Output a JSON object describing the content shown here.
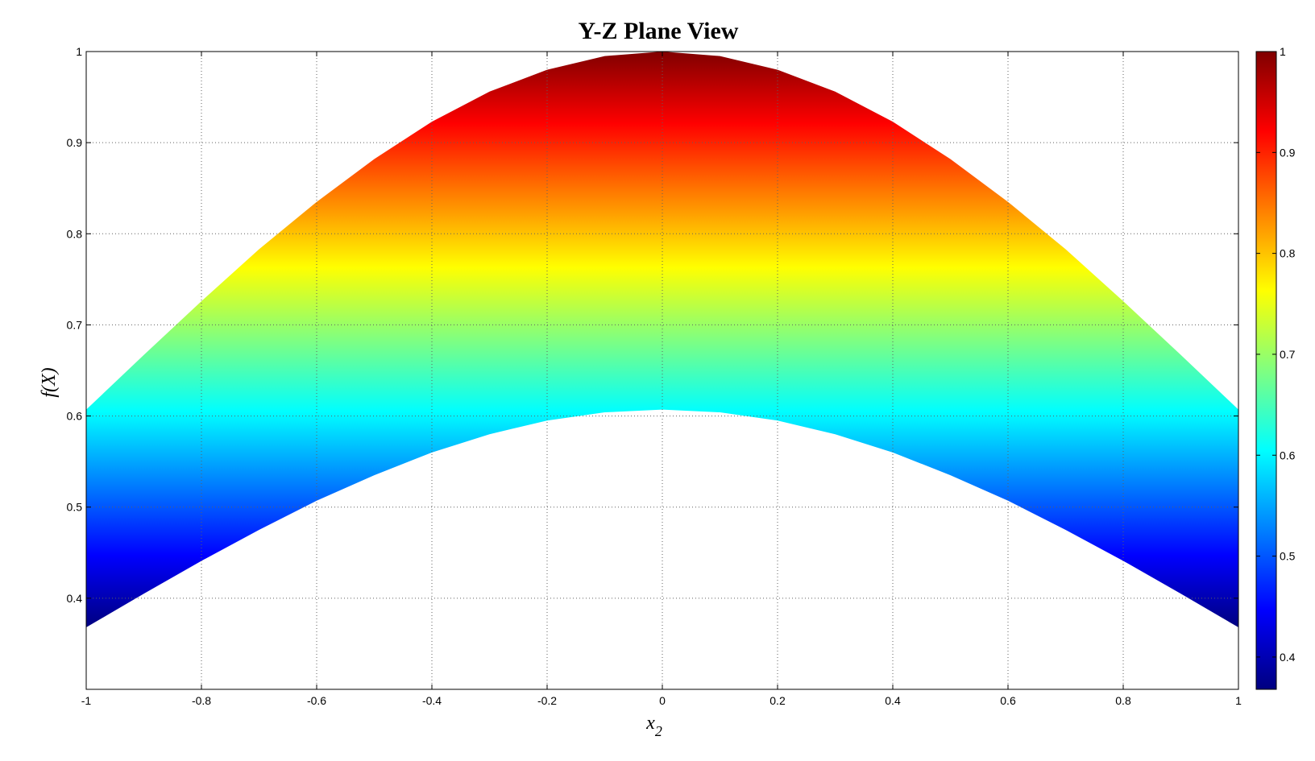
{
  "chart_data": {
    "type": "area",
    "title": "Y-Z Plane View",
    "xlabel": "x",
    "xlabel_subscript": "2",
    "ylabel": "f(X)",
    "xlim": [
      -1,
      1
    ],
    "ylim": [
      0.3,
      1.0
    ],
    "x_ticks": [
      "-1",
      "-0.8",
      "-0.6",
      "-0.4",
      "-0.2",
      "0",
      "0.2",
      "0.4",
      "0.6",
      "0.8",
      "1"
    ],
    "y_ticks": [
      "0.4",
      "0.5",
      "0.6",
      "0.7",
      "0.8",
      "0.9",
      "1"
    ],
    "grid": true,
    "colormap": "jet",
    "series": [
      {
        "x": [
          -1,
          -0.9,
          -0.8,
          -0.7,
          -0.6,
          -0.5,
          -0.4,
          -0.3,
          -0.2,
          -0.1,
          0,
          0.1,
          0.2,
          0.3,
          0.4,
          0.5,
          0.6,
          0.7,
          0.8,
          0.9,
          1
        ],
        "upper": [
          0.607,
          0.667,
          0.726,
          0.783,
          0.835,
          0.882,
          0.923,
          0.956,
          0.98,
          0.995,
          1.0,
          0.995,
          0.98,
          0.956,
          0.923,
          0.882,
          0.835,
          0.783,
          0.726,
          0.667,
          0.607
        ],
        "lower": [
          0.368,
          0.405,
          0.441,
          0.475,
          0.507,
          0.535,
          0.56,
          0.58,
          0.595,
          0.604,
          0.607,
          0.604,
          0.595,
          0.58,
          0.56,
          0.535,
          0.507,
          0.475,
          0.441,
          0.405,
          0.368
        ]
      }
    ],
    "colorbar": {
      "range": [
        0.368,
        1.0
      ],
      "ticks": [
        "0.4",
        "0.5",
        "0.6",
        "0.7",
        "0.8",
        "0.9",
        "1"
      ]
    }
  }
}
